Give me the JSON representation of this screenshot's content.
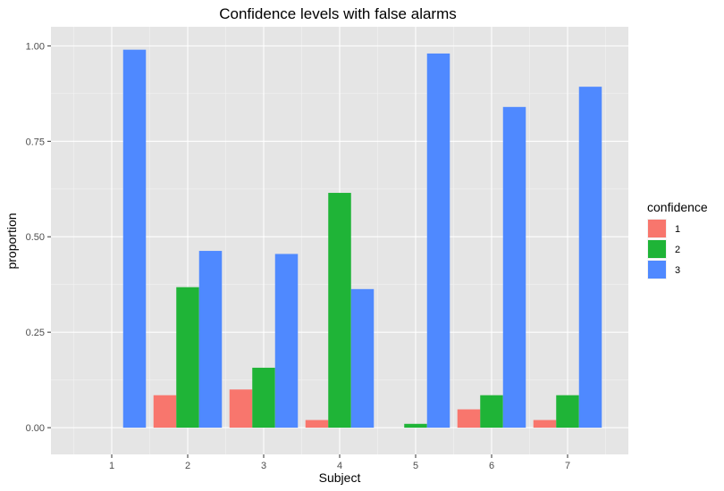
{
  "chart_data": {
    "type": "bar",
    "title": "Confidence levels with false alarms",
    "xlabel": "Subject",
    "ylabel": "proportion",
    "categories": [
      "1",
      "2",
      "3",
      "4",
      "5",
      "6",
      "7"
    ],
    "ylim": [
      -0.07,
      1.05
    ],
    "yticks": [
      "0.00",
      "0.25",
      "0.50",
      "0.75",
      "1.00"
    ],
    "legend_title": "confidence",
    "legend_position": "right",
    "grid": true,
    "series": [
      {
        "name": "1",
        "color": "#F8766D",
        "values": [
          0,
          0.085,
          0.1,
          0.02,
          0,
          0.048,
          0.02
        ]
      },
      {
        "name": "2",
        "color": "#1FB437",
        "values": [
          0,
          0.368,
          0.157,
          0.615,
          0.01,
          0.085,
          0.085
        ]
      },
      {
        "name": "3",
        "color": "#4F89FF",
        "values": [
          0.99,
          0.463,
          0.455,
          0.363,
          0.98,
          0.84,
          0.893
        ]
      }
    ]
  }
}
